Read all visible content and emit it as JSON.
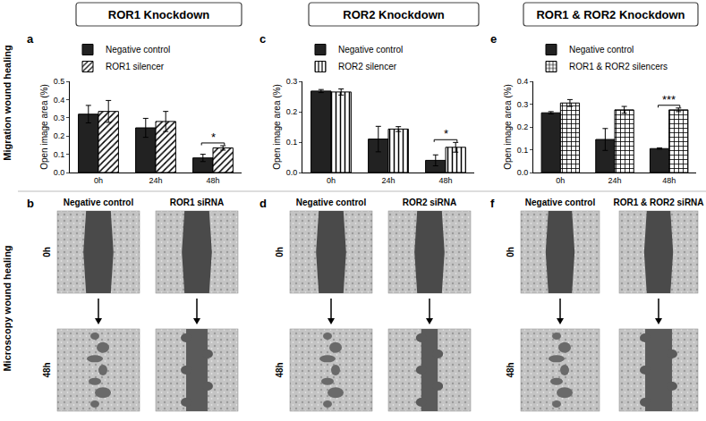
{
  "headers": [
    "ROR1 Knockdown",
    "ROR2 Knockdown",
    "ROR1 & ROR2 Knockdown"
  ],
  "row_labels": [
    "Migration wound healing",
    "Microscopy wound healing"
  ],
  "chart_data": [
    {
      "type": "bar",
      "panel": "a",
      "y_label": "Open image area (%)",
      "categories": [
        "0h",
        "24h",
        "48h"
      ],
      "series": [
        {
          "name": "Negative control",
          "color": "#222222",
          "marker": "solid",
          "values": [
            0.32,
            0.245,
            0.08
          ],
          "errors": [
            0.048,
            0.052,
            0.02
          ]
        },
        {
          "name": "ROR1 silencer",
          "color": "#ffffff",
          "marker": "diagonal",
          "values": [
            0.335,
            0.28,
            0.135
          ],
          "errors": [
            0.06,
            0.055,
            0.012
          ]
        }
      ],
      "ylim": [
        0,
        0.5
      ],
      "yticks": [
        {
          "value": 0,
          "label": "0.0"
        },
        0.1,
        0.2,
        0.3,
        0.4,
        0.5
      ],
      "annotations": [
        {
          "category": "48h",
          "text": "*"
        }
      ],
      "legend": "top left",
      "grid": false
    },
    {
      "type": "bar",
      "panel": "c",
      "y_label": "Open image area (%)",
      "categories": [
        "0h",
        "24h",
        "48h"
      ],
      "series": [
        {
          "name": "Negative control",
          "color": "#222222",
          "marker": "solid",
          "values": [
            0.268,
            0.11,
            0.04
          ],
          "errors": [
            0.005,
            0.042,
            0.018
          ]
        },
        {
          "name": "ROR2 silencer",
          "color": "#ffffff",
          "marker": "vertical",
          "values": [
            0.265,
            0.143,
            0.083
          ],
          "errors": [
            0.01,
            0.008,
            0.016
          ]
        }
      ],
      "ylim": [
        0,
        0.3
      ],
      "yticks": [
        {
          "value": 0,
          "label": "0.0"
        },
        0.1,
        0.2,
        0.3
      ],
      "annotations": [
        {
          "category": "48h",
          "text": "*"
        }
      ],
      "legend": "top left",
      "grid": false
    },
    {
      "type": "bar",
      "panel": "e",
      "y_label": "Open image area (%)",
      "categories": [
        "0h",
        "24h",
        "48h"
      ],
      "series": [
        {
          "name": "Negative control",
          "color": "#222222",
          "marker": "solid",
          "values": [
            0.262,
            0.145,
            0.105
          ],
          "errors": [
            0.005,
            0.048,
            0.003
          ]
        },
        {
          "name": "ROR1 & ROR2 silencers",
          "color": "#ffffff",
          "marker": "grid",
          "values": [
            0.305,
            0.275,
            0.275
          ],
          "errors": [
            0.015,
            0.015,
            0.008
          ]
        }
      ],
      "ylim": [
        0,
        0.4
      ],
      "yticks": [
        {
          "value": 0,
          "label": "0.0"
        },
        0.1,
        0.2,
        0.3,
        0.4
      ],
      "annotations": [
        {
          "category": "48h",
          "text": "***"
        }
      ],
      "legend": "top left",
      "grid": false
    }
  ],
  "microscopy": [
    {
      "panel": "b",
      "columns": [
        "Negative control",
        "ROR1 siRNA"
      ],
      "rows": [
        "0h",
        "48h"
      ]
    },
    {
      "panel": "d",
      "columns": [
        "Negative control",
        "ROR2 siRNA"
      ],
      "rows": [
        "0h",
        "48h"
      ]
    },
    {
      "panel": "f",
      "columns": [
        "Negative control",
        "ROR1 & ROR2 siRNA"
      ],
      "rows": [
        "0h",
        "48h"
      ]
    }
  ]
}
